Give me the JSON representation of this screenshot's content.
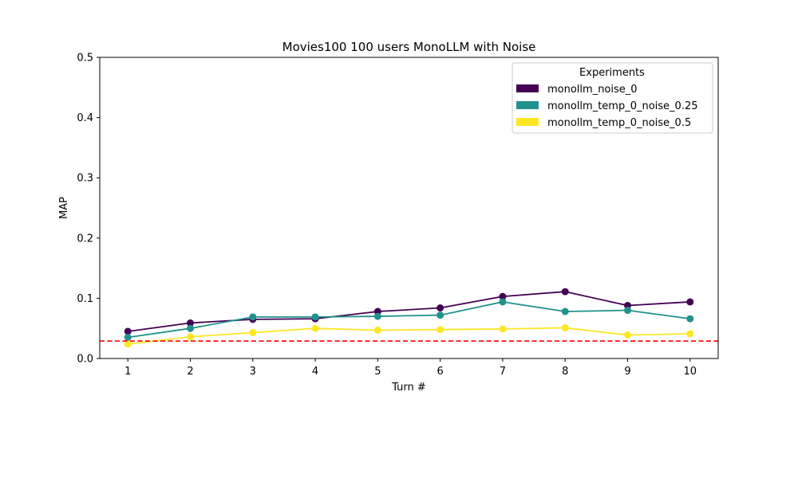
{
  "chart_data": {
    "type": "line",
    "title": "Movies100 100 users MonoLLM with Noise",
    "xlabel": "Turn #",
    "ylabel": "MAP",
    "x": [
      1,
      2,
      3,
      4,
      5,
      6,
      7,
      8,
      9,
      10
    ],
    "x_tick_labels": [
      "1",
      "2",
      "3",
      "4",
      "5",
      "6",
      "7",
      "8",
      "9",
      "10"
    ],
    "xlim": [
      0.55,
      10.45
    ],
    "ylim": [
      0.0,
      0.5
    ],
    "y_ticks": [
      0.0,
      0.1,
      0.2,
      0.3,
      0.4,
      0.5
    ],
    "y_tick_labels": [
      "0.0",
      "0.1",
      "0.2",
      "0.3",
      "0.4",
      "0.5"
    ],
    "grid": false,
    "legend": {
      "title": "Experiments",
      "position": "top-right"
    },
    "series": [
      {
        "name": "monollm_noise_0",
        "color": "#440154",
        "values": [
          0.045,
          0.059,
          0.065,
          0.066,
          0.078,
          0.084,
          0.103,
          0.111,
          0.088,
          0.094
        ]
      },
      {
        "name": "monollm_temp_0_noise_0.25",
        "color": "#21918c",
        "values": [
          0.035,
          0.05,
          0.069,
          0.069,
          0.07,
          0.072,
          0.094,
          0.078,
          0.08,
          0.066
        ]
      },
      {
        "name": "monollm_temp_0_noise_0.5",
        "color": "#fde725",
        "values": [
          0.024,
          0.036,
          0.043,
          0.05,
          0.047,
          0.048,
          0.049,
          0.051,
          0.039,
          0.041
        ]
      }
    ],
    "reference_line": {
      "value": 0.029,
      "color": "#ff0000",
      "style": "dashed"
    }
  }
}
